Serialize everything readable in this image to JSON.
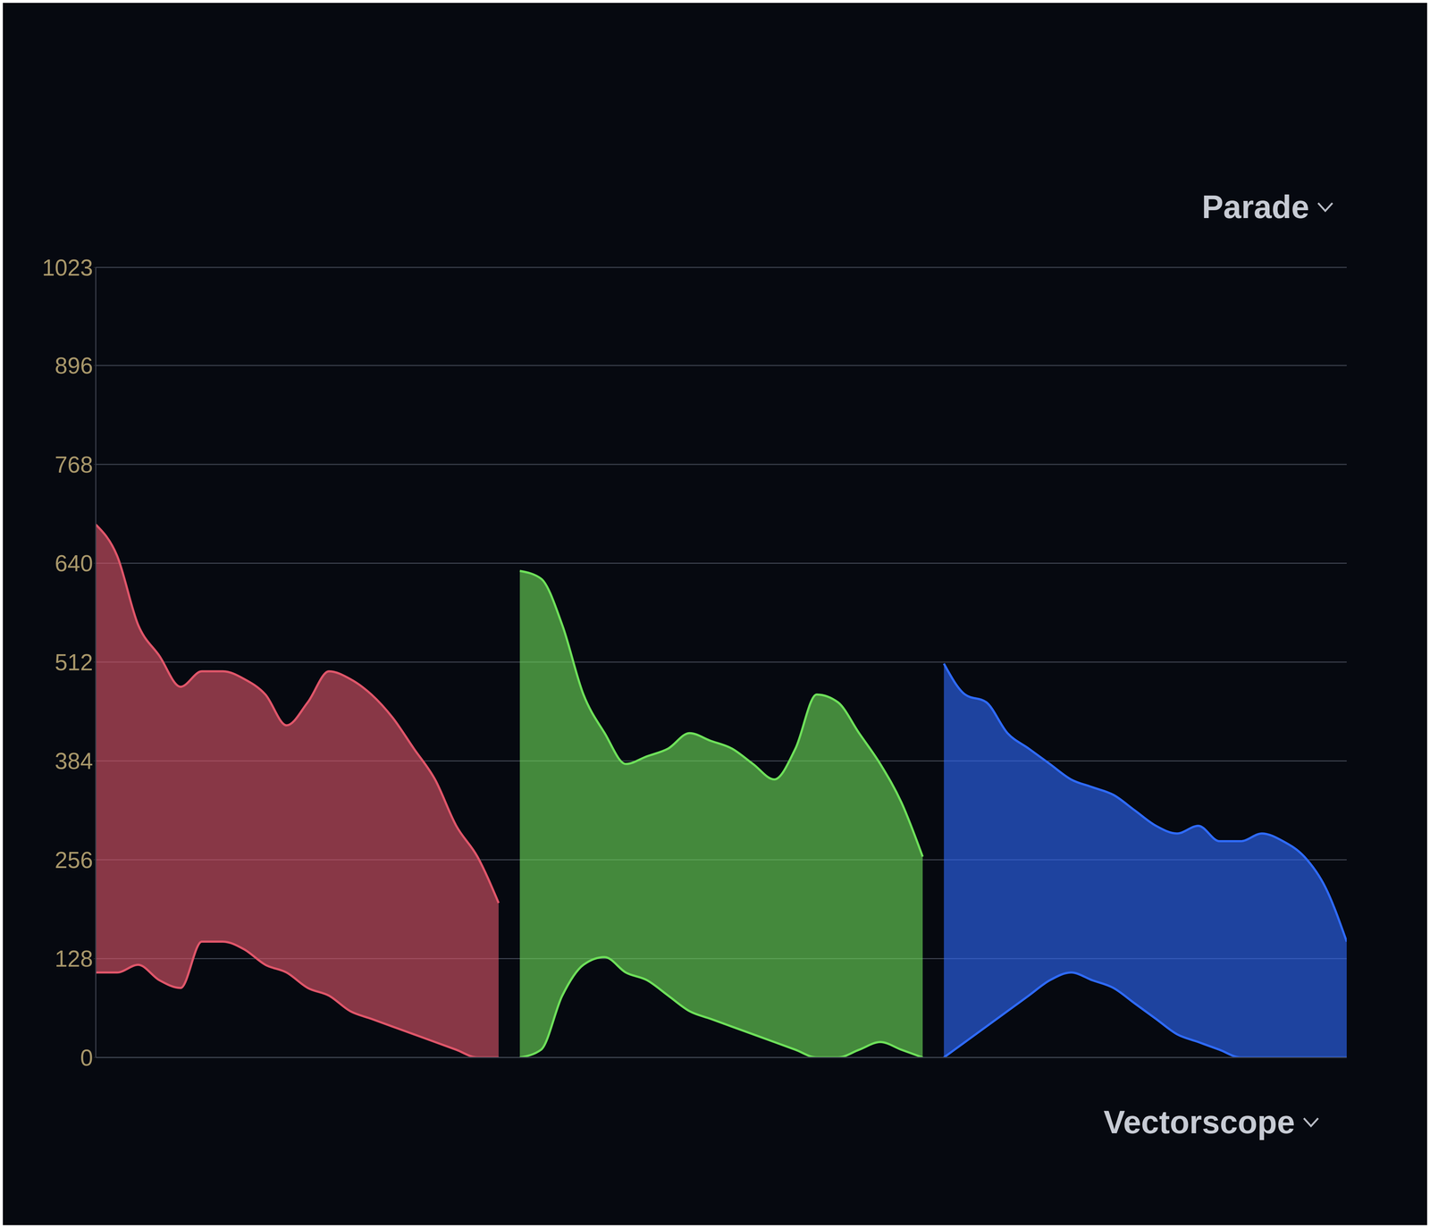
{
  "chart_data": {
    "type": "area",
    "annotations": [
      "Parade",
      "Vectorscope"
    ],
    "xlim": [
      0,
      59
    ],
    "ylim": [
      0,
      1023
    ],
    "yticks": [
      0,
      128,
      256,
      384,
      512,
      640,
      768,
      896,
      1023
    ],
    "grid": true,
    "tick_labels": "y",
    "series": [
      {
        "color": "#e0566a",
        "x": [
          0,
          1,
          2,
          3,
          4,
          5,
          6,
          7,
          8,
          9,
          10,
          11,
          12,
          13,
          14,
          15,
          16,
          17,
          18,
          19
        ],
        "values": [
          690,
          650,
          560,
          520,
          480,
          500,
          500,
          490,
          470,
          430,
          460,
          500,
          490,
          470,
          440,
          400,
          360,
          300,
          260,
          200
        ],
        "low": [
          110,
          110,
          120,
          100,
          90,
          150,
          150,
          140,
          120,
          110,
          90,
          80,
          60,
          50,
          40,
          30,
          20,
          10,
          0,
          0
        ]
      },
      {
        "color": "#6ee05a",
        "x": [
          20,
          21,
          22,
          23,
          24,
          25,
          26,
          27,
          28,
          29,
          30,
          31,
          32,
          33,
          34,
          35,
          36,
          37,
          38,
          39
        ],
        "values": [
          630,
          620,
          560,
          470,
          420,
          380,
          390,
          400,
          420,
          410,
          400,
          380,
          360,
          400,
          470,
          460,
          420,
          380,
          330,
          260
        ],
        "low": [
          0,
          10,
          80,
          120,
          130,
          110,
          100,
          80,
          60,
          50,
          40,
          30,
          20,
          10,
          0,
          0,
          10,
          20,
          10,
          0
        ]
      },
      {
        "color": "#2f6bff",
        "x": [
          40,
          41,
          42,
          43,
          44,
          45,
          46,
          47,
          48,
          49,
          50,
          51,
          52,
          53,
          54,
          55,
          56,
          57,
          58,
          59
        ],
        "values": [
          510,
          470,
          460,
          420,
          400,
          380,
          360,
          350,
          340,
          320,
          300,
          290,
          300,
          280,
          280,
          290,
          280,
          260,
          220,
          150
        ],
        "low": [
          0,
          20,
          40,
          60,
          80,
          100,
          110,
          100,
          90,
          70,
          50,
          30,
          20,
          10,
          0,
          0,
          0,
          0,
          0,
          0
        ]
      }
    ]
  }
}
